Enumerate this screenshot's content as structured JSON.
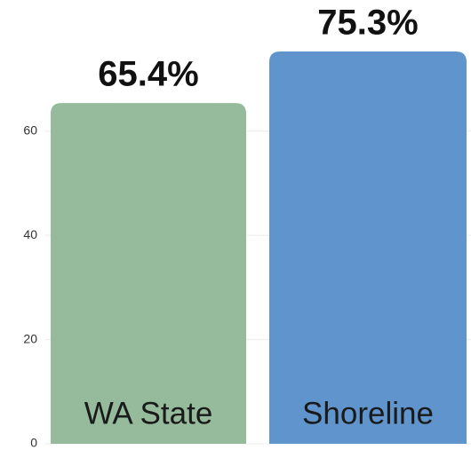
{
  "chart_data": {
    "type": "bar",
    "categories": [
      "WA State",
      "Shoreline"
    ],
    "values": [
      65.4,
      75.3
    ],
    "value_labels": [
      "65.4%",
      "75.3%"
    ],
    "colors": [
      "#95bb9c",
      "#5f95cc"
    ],
    "ylim": [
      0,
      85
    ],
    "yticks": [
      0,
      20,
      40,
      60
    ],
    "grid": true
  }
}
